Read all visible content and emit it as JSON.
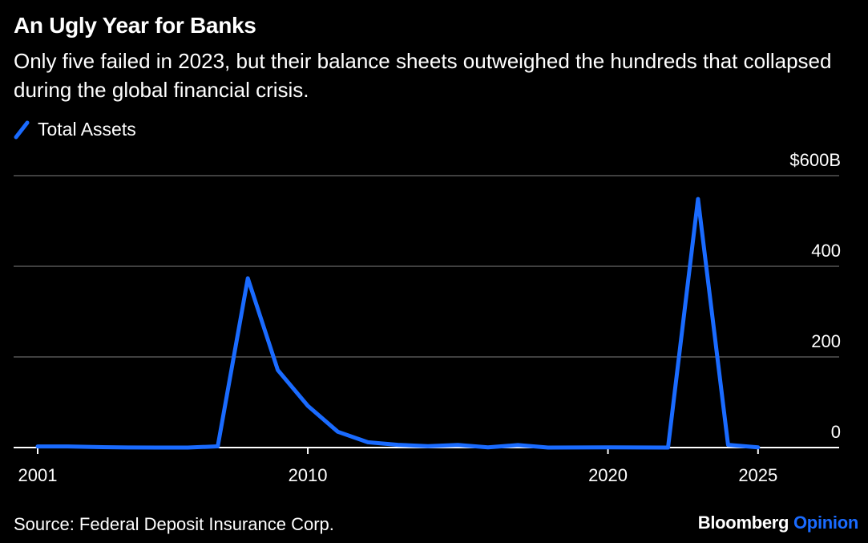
{
  "title": "An Ugly Year for Banks",
  "subtitle": "Only five failed in 2023, but their balance sheets outweighed the hundreds that collapsed during the global financial crisis.",
  "source": "Source: Federal Deposit Insurance Corp.",
  "brand": {
    "name": "Bloomberg",
    "suffix": "Opinion",
    "suffix_color": "#1a6bff"
  },
  "colors": {
    "background": "#000000",
    "line": "#1a6bff",
    "grid": "#555555",
    "axis": "#ffffff",
    "text": "#ffffff"
  },
  "chart_data": {
    "type": "line",
    "title": "An Ugly Year for Banks",
    "xlabel": "",
    "ylabel": "",
    "xlim": [
      2001,
      2026
    ],
    "ylim": [
      0,
      600
    ],
    "y_ticks": [
      {
        "value": 600,
        "label": "$600B"
      },
      {
        "value": 400,
        "label": "400"
      },
      {
        "value": 200,
        "label": "200"
      },
      {
        "value": 0,
        "label": "0"
      }
    ],
    "x_ticks": [
      {
        "value": 2001,
        "label": "2001"
      },
      {
        "value": 2010,
        "label": "2010"
      },
      {
        "value": 2020,
        "label": "2020"
      },
      {
        "value": 2025,
        "label": "2025"
      }
    ],
    "y_axis_position": "right",
    "grid": true,
    "legend_position": "top-left",
    "series": [
      {
        "name": "Total Assets",
        "color": "#1a6bff",
        "x": [
          2001,
          2002,
          2003,
          2004,
          2005,
          2006,
          2007,
          2008,
          2009,
          2010,
          2011,
          2012,
          2013,
          2014,
          2015,
          2016,
          2017,
          2018,
          2019,
          2020,
          2021,
          2022,
          2023,
          2024,
          2025
        ],
        "values": [
          2.4,
          2.5,
          1.0,
          0.2,
          0.0,
          0.0,
          2.6,
          373.6,
          170.9,
          92.1,
          34.9,
          11.6,
          6.0,
          3.0,
          5.6,
          0.3,
          5.4,
          0.0,
          0.2,
          0.5,
          0.2,
          0.0,
          548.5,
          6.0,
          0.5
        ]
      }
    ]
  }
}
